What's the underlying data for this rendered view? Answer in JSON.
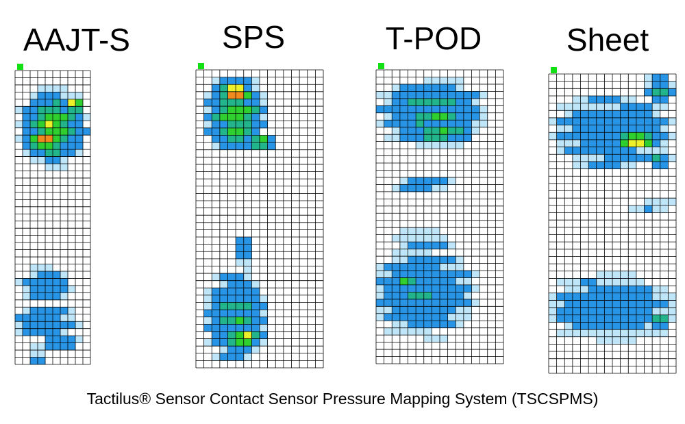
{
  "panels": [
    {
      "title": "AAJT-S"
    },
    {
      "title": "SPS"
    },
    {
      "title": "T-POD"
    },
    {
      "title": "Sheet"
    }
  ],
  "caption": "Tactilus® Sensor Contact Sensor Pressure Mapping System (TSCSPMS)"
}
